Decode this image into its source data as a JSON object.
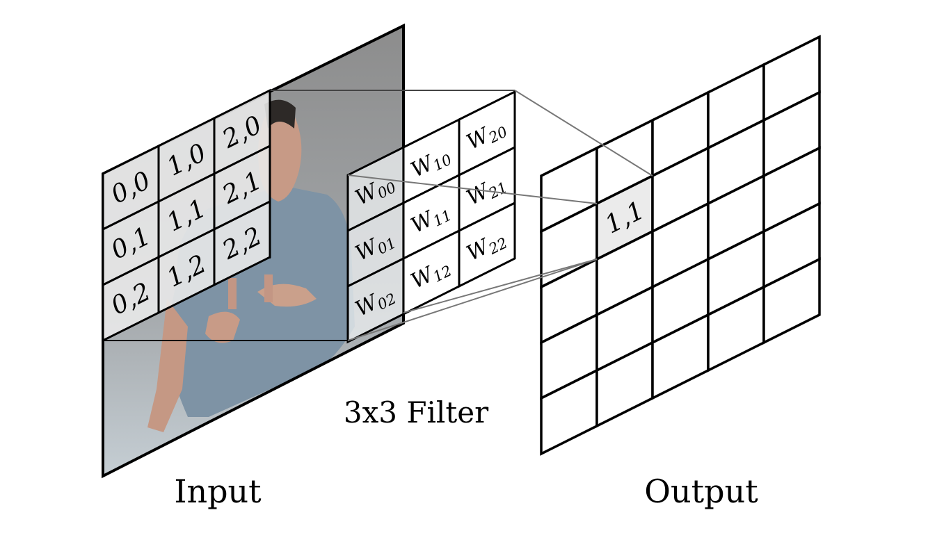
{
  "labels": {
    "input": "Input",
    "output": "Output",
    "filter": "3x3 Filter",
    "output_cell": "1,1"
  },
  "input_cells": [
    [
      "0,0",
      "1,0",
      "2,0"
    ],
    [
      "0,1",
      "1,1",
      "2,1"
    ],
    [
      "0,2",
      "1,2",
      "2,2"
    ]
  ],
  "filter_weights": [
    [
      {
        "base": "W",
        "sub": "00"
      },
      {
        "base": "W",
        "sub": "10"
      },
      {
        "base": "W",
        "sub": "20"
      }
    ],
    [
      {
        "base": "W",
        "sub": "01"
      },
      {
        "base": "W",
        "sub": "11"
      },
      {
        "base": "W",
        "sub": "21"
      }
    ],
    [
      {
        "base": "W",
        "sub": "02"
      },
      {
        "base": "W",
        "sub": "12"
      },
      {
        "base": "W",
        "sub": "22"
      }
    ]
  ],
  "output_grid": {
    "cols": 5,
    "rows": 5,
    "highlight": {
      "col": 1,
      "row": 1
    }
  },
  "colors": {
    "cell_fill": "#ebebeb",
    "input_bg_top": "#8f8f8f",
    "input_bg_bottom": "#c9d2d8",
    "shirt": "#7f94a6",
    "skin": "#c99a86",
    "hair": "#2e2a28",
    "connector": "#777777"
  }
}
